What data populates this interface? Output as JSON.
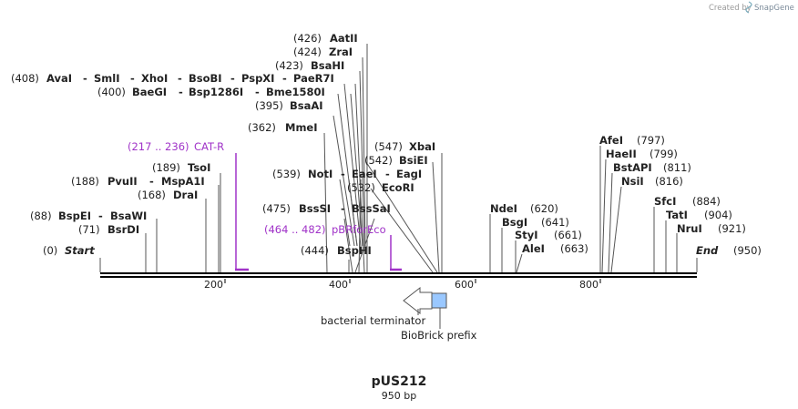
{
  "brand": {
    "created_by": "Created by",
    "name": "SnapGene"
  },
  "plasmid": {
    "name": "pUS212",
    "length": "950 bp",
    "bp": 950
  },
  "axis": {
    "ticks": [
      {
        "pos": 200,
        "label": "200"
      },
      {
        "pos": 400,
        "label": "400"
      },
      {
        "pos": 600,
        "label": "600"
      },
      {
        "pos": 800,
        "label": "800"
      }
    ]
  },
  "sites": [
    {
      "id": "start",
      "lines": [
        {
          "pos": "(0)",
          "name": "Start"
        }
      ],
      "bp": 0
    },
    {
      "id": "bsrdi",
      "lines": [
        {
          "pos": "(71)",
          "name": "BsrDI"
        }
      ],
      "bp": 71
    },
    {
      "id": "bspei",
      "lines": [
        {
          "pos": "(88)",
          "name": "BspEI"
        },
        {
          "name": "BsaWI"
        }
      ],
      "bp": 88
    },
    {
      "id": "drai",
      "lines": [
        {
          "pos": "(168)",
          "name": "DraI"
        }
      ],
      "bp": 168
    },
    {
      "id": "pvuii",
      "lines": [
        {
          "pos": "(188)",
          "name": "PvuII"
        },
        {
          "name": "MspA1I"
        }
      ],
      "bp": 188
    },
    {
      "id": "tsoi",
      "lines": [
        {
          "pos": "(189)",
          "name": "TsoI"
        }
      ],
      "bp": 189
    },
    {
      "id": "mmei",
      "lines": [
        {
          "pos": "(362)",
          "name": "MmeI"
        }
      ],
      "bp": 362
    },
    {
      "id": "bspedi",
      "lines": [
        {
          "pos": "(444)",
          "name": "BspHI"
        }
      ],
      "bp": 444
    },
    {
      "id": "bsssi",
      "lines": [
        {
          "pos": "(475)",
          "name": "BssSI"
        },
        {
          "name": "BssSaI"
        }
      ],
      "bp": 475
    },
    {
      "id": "ecori",
      "lines": [
        {
          "pos": "(532)",
          "name": "EcoRI"
        }
      ],
      "bp": 532
    },
    {
      "id": "noti",
      "lines": [
        {
          "pos": "(539)",
          "name": "NotI"
        },
        {
          "name": "EaeI"
        },
        {
          "name": "EagI"
        }
      ],
      "bp": 539
    },
    {
      "id": "bsiei",
      "lines": [
        {
          "pos": "(542)",
          "name": "BsiEI"
        }
      ],
      "bp": 542
    },
    {
      "id": "xbai",
      "lines": [
        {
          "pos": "(547)",
          "name": "XbaI"
        }
      ],
      "bp": 547
    },
    {
      "id": "bsaai",
      "lines": [
        {
          "pos": "(395)",
          "name": "BsaAI"
        }
      ],
      "bp": 395
    },
    {
      "id": "baegi",
      "lines": [
        {
          "pos": "(400)",
          "name": "BaeGI"
        },
        {
          "name": "Bsp1286I"
        },
        {
          "name": "Bme1580I"
        }
      ],
      "bp": 400
    },
    {
      "id": "avai",
      "lines": [
        {
          "pos": "(408)",
          "name": "AvaI"
        },
        {
          "name": "SmlI"
        },
        {
          "name": "XhoI"
        },
        {
          "name": "BsoBI"
        },
        {
          "name": "PspXI"
        },
        {
          "name": "PaeR7I"
        }
      ],
      "bp": 408
    },
    {
      "id": "bsahi",
      "lines": [
        {
          "pos": "(423)",
          "name": "BsaHI"
        }
      ],
      "bp": 423
    },
    {
      "id": "zrai",
      "lines": [
        {
          "pos": "(424)",
          "name": "ZraI"
        }
      ],
      "bp": 424
    },
    {
      "id": "aatii",
      "lines": [
        {
          "pos": "(426)",
          "name": "AatII"
        }
      ],
      "bp": 426
    },
    {
      "id": "ndei",
      "lines": [
        {
          "name": "NdeI",
          "pos": "(620)"
        }
      ],
      "bp": 620
    },
    {
      "id": "bsgi",
      "lines": [
        {
          "name": "BsgI",
          "pos": "(641)"
        }
      ],
      "bp": 641
    },
    {
      "id": "styi",
      "lines": [
        {
          "name": "StyI",
          "pos": "(661)"
        }
      ],
      "bp": 661
    },
    {
      "id": "alei",
      "lines": [
        {
          "name": "AleI",
          "pos": "(663)"
        }
      ],
      "bp": 663
    },
    {
      "id": "afei",
      "lines": [
        {
          "name": "AfeI",
          "pos": "(797)"
        }
      ],
      "bp": 797
    },
    {
      "id": "haeii",
      "lines": [
        {
          "name": "HaeII",
          "pos": "(799)"
        }
      ],
      "bp": 799
    },
    {
      "id": "bstapi",
      "lines": [
        {
          "name": "BstAPI",
          "pos": "(811)"
        }
      ],
      "bp": 811
    },
    {
      "id": "nsii",
      "lines": [
        {
          "name": "NsiI",
          "pos": "(816)"
        }
      ],
      "bp": 816
    },
    {
      "id": "sfci",
      "lines": [
        {
          "name": "SfcI",
          "pos": "(884)"
        }
      ],
      "bp": 884
    },
    {
      "id": "tati",
      "lines": [
        {
          "name": "TatI",
          "pos": "(904)"
        }
      ],
      "bp": 904
    },
    {
      "id": "nrui",
      "lines": [
        {
          "name": "NruI",
          "pos": "(921)"
        }
      ],
      "bp": 921
    },
    {
      "id": "end",
      "lines": [
        {
          "name": "End",
          "pos": "(950)"
        }
      ],
      "bp": 950
    }
  ],
  "primers": [
    {
      "range": "(217 .. 236)",
      "name": "CAT-R",
      "color": "#a033c8",
      "start": 217,
      "end": 236
    },
    {
      "range": "(464 .. 482)",
      "name": "pBRforEco",
      "color": "#a033c8",
      "start": 464,
      "end": 482
    }
  ],
  "features": [
    {
      "name": "bacterial terminator",
      "type": "arrow",
      "color": "#ffffff"
    },
    {
      "name": "BioBrick prefix",
      "type": "box",
      "color": "#9ac8ff"
    }
  ]
}
